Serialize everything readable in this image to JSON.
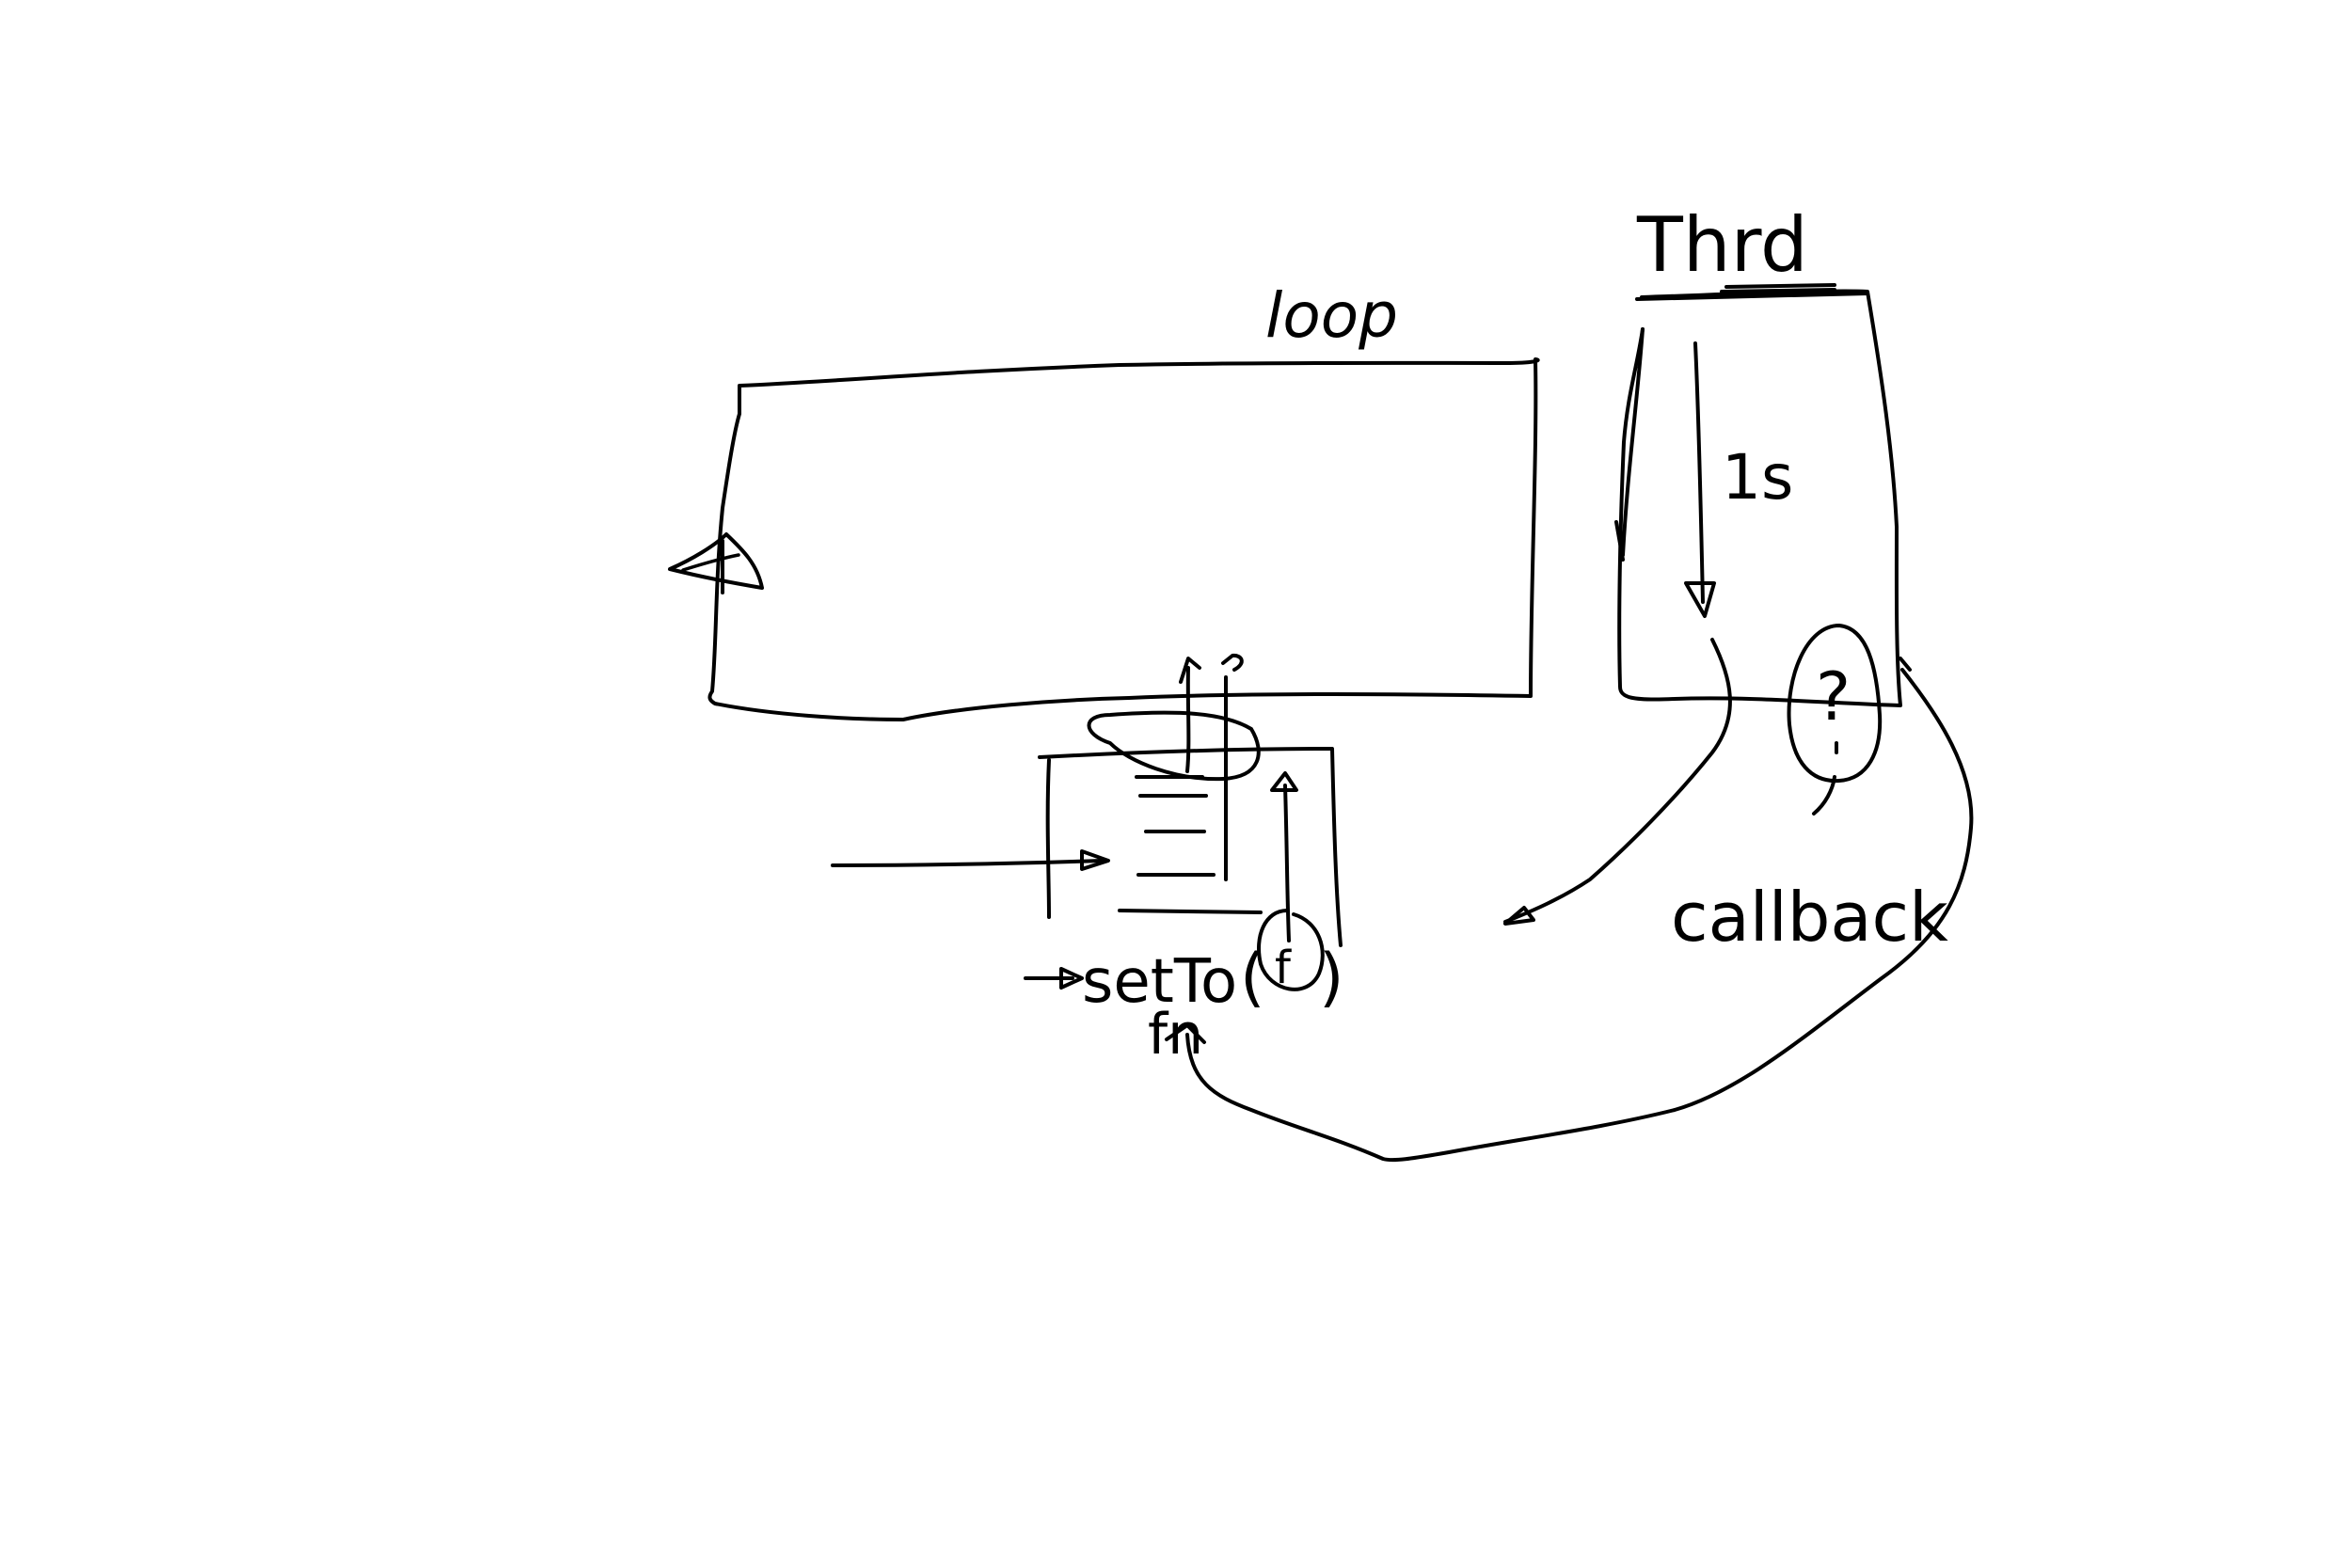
{
  "labels": {
    "loop": "loop",
    "thread": "Thrd",
    "sleep": "1s",
    "callback": "callback",
    "set_timeout": "setTo",
    "fn": "fn",
    "question": "?"
  },
  "colors": {
    "background": "#ffffff",
    "ink": "#000000"
  }
}
